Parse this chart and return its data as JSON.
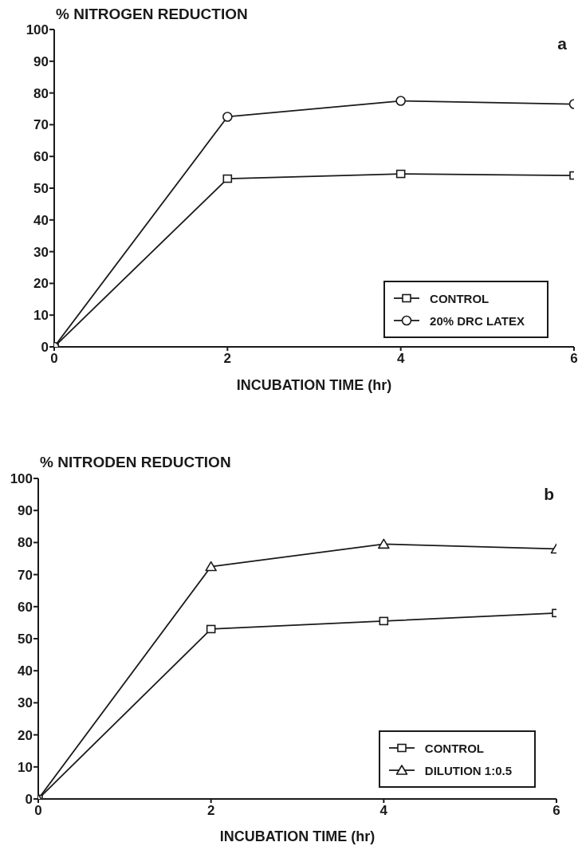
{
  "chart_data": [
    {
      "type": "line",
      "ylabel": "% NITROGEN REDUCTION",
      "xlabel": "INCUBATION TIME (hr)",
      "annotations": [
        "a"
      ],
      "x": [
        0,
        2,
        4,
        6
      ],
      "xlim": [
        0,
        6
      ],
      "xticks": [
        0,
        2,
        4,
        6
      ],
      "ylim": [
        0,
        100
      ],
      "yticks": [
        0,
        10,
        20,
        30,
        40,
        50,
        60,
        70,
        80,
        90,
        100
      ],
      "legend": "bottom right",
      "line_style": "solid",
      "series": [
        {
          "name": "CONTROL",
          "color": "#1a1a1a",
          "marker": "square",
          "values": [
            0,
            53,
            54.5,
            54
          ]
        },
        {
          "name": "20% DRC LATEX",
          "color": "#1a1a1a",
          "marker": "circle",
          "values": [
            0,
            72.5,
            77.5,
            76.5
          ]
        }
      ]
    },
    {
      "type": "line",
      "ylabel": "% NITRODEN REDUCTION",
      "xlabel": "INCUBATION TIME (hr)",
      "annotations": [
        "b"
      ],
      "x": [
        0,
        2,
        4,
        6
      ],
      "xlim": [
        0,
        6
      ],
      "xticks": [
        0,
        2,
        4,
        6
      ],
      "ylim": [
        0,
        100
      ],
      "yticks": [
        0,
        10,
        20,
        30,
        40,
        50,
        60,
        70,
        80,
        90,
        100
      ],
      "legend": "bottom right",
      "line_style": "solid",
      "series": [
        {
          "name": "CONTROL",
          "color": "#1a1a1a",
          "marker": "square",
          "values": [
            0,
            53,
            55.5,
            58
          ]
        },
        {
          "name": "DILUTION 1:0.5",
          "color": "#1a1a1a",
          "marker": "triangle",
          "values": [
            0,
            72.5,
            79.5,
            78
          ]
        }
      ]
    }
  ]
}
